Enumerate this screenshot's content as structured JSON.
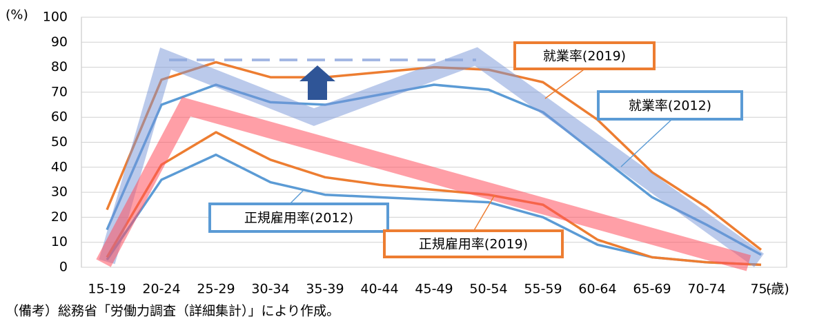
{
  "chart_data": {
    "type": "line",
    "y_unit": "(%)",
    "x_unit": "(歳)",
    "note": "（備考）総務省「労働力調査（詳細集計）」により作成。",
    "categories": [
      "15-19",
      "20-24",
      "25-29",
      "30-34",
      "35-39",
      "40-44",
      "45-49",
      "50-54",
      "55-59",
      "60-64",
      "65-69",
      "70-74",
      "75-"
    ],
    "series": [
      {
        "name": "就業率(2019)",
        "color": "#ed7d31",
        "values": [
          23,
          75,
          82,
          76,
          76,
          78,
          80,
          79,
          74,
          59,
          38,
          24,
          7
        ]
      },
      {
        "name": "就業率(2012)",
        "color": "#5b9bd5",
        "values": [
          15,
          65,
          73,
          66,
          65,
          69,
          73,
          71,
          62,
          45,
          28,
          17,
          5
        ]
      },
      {
        "name": "正規雇用率(2012)",
        "color": "#5b9bd5",
        "values": [
          3,
          35,
          45,
          34,
          29,
          28,
          27,
          26,
          20,
          9,
          4,
          2,
          1
        ]
      },
      {
        "name": "正規雇用率(2019)",
        "color": "#ed7d31",
        "values": [
          4,
          41,
          54,
          43,
          36,
          33,
          31,
          29,
          25,
          11,
          4,
          2,
          1
        ]
      }
    ],
    "ylim": [
      0,
      100
    ],
    "yticks": [
      0,
      10,
      20,
      30,
      40,
      50,
      60,
      70,
      80,
      90,
      100
    ],
    "grid": true
  }
}
